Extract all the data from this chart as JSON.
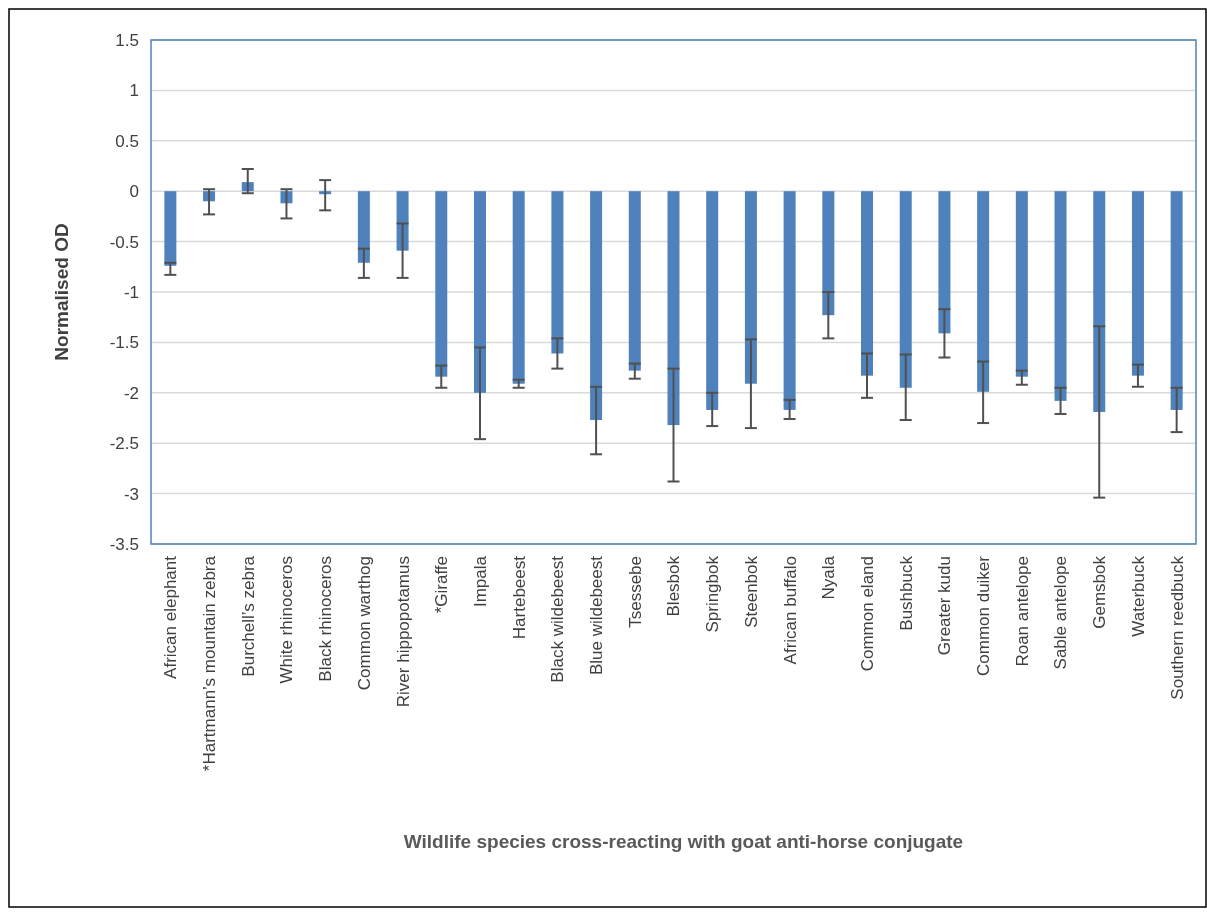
{
  "chart_data": {
    "type": "bar",
    "xlabel": "Wildlife species cross-reacting with goat anti-horse conjugate",
    "ylabel": "Normalised OD",
    "categories": [
      "African elephant",
      "*Hartmann’s mountain zebra",
      "Burchell’s zebra",
      "White rhinoceros",
      "Black rhinoceros",
      "Common warthog",
      "River hippopotamus",
      "*Giraffe",
      "Impala",
      "Hartebeest",
      "Black wildebeest",
      "Blue wildebeest",
      "Tsessebe",
      "Blesbok",
      "Springbok",
      "Steenbok",
      "African buffalo",
      "Nyala",
      "Common eland",
      "Bushbuck",
      "Greater kudu",
      "Common duiker",
      "Roan antelope",
      "Sable antelope",
      "Gemsbok",
      "Waterbuck",
      "Southern reedbuck"
    ],
    "values": [
      -0.74,
      -0.1,
      0.09,
      -0.12,
      -0.03,
      -0.71,
      -0.59,
      -1.84,
      -2.0,
      -1.91,
      -1.61,
      -2.27,
      -1.78,
      -2.32,
      -2.17,
      -1.91,
      -2.17,
      -1.23,
      -1.83,
      -1.95,
      -1.41,
      -1.99,
      -1.84,
      -2.08,
      -2.19,
      -1.83,
      -2.17
    ],
    "errors": [
      [
        -0.83,
        -0.71
      ],
      [
        -0.23,
        0.02
      ],
      [
        -0.02,
        0.22
      ],
      [
        -0.27,
        0.02
      ],
      [
        -0.19,
        0.11
      ],
      [
        -0.86,
        -0.57
      ],
      [
        -0.86,
        -0.32
      ],
      [
        -1.95,
        -1.73
      ],
      [
        -2.46,
        -1.55
      ],
      [
        -1.95,
        -1.87
      ],
      [
        -1.76,
        -1.46
      ],
      [
        -2.61,
        -1.94
      ],
      [
        -1.86,
        -1.71
      ],
      [
        -2.88,
        -1.76
      ],
      [
        -2.33,
        -2.0
      ],
      [
        -2.35,
        -1.47
      ],
      [
        -2.26,
        -2.07
      ],
      [
        -1.46,
        -1.0
      ],
      [
        -2.05,
        -1.61
      ],
      [
        -2.27,
        -1.62
      ],
      [
        -1.65,
        -1.17
      ],
      [
        -2.3,
        -1.69
      ],
      [
        -1.92,
        -1.78
      ],
      [
        -2.21,
        -1.95
      ],
      [
        -3.04,
        -1.34
      ],
      [
        -1.94,
        -1.72
      ],
      [
        -2.39,
        -1.95
      ]
    ],
    "color": "#4f81bd",
    "ylim": [
      -3.5,
      1.5
    ],
    "yticks": [
      -3.5,
      -3,
      -2.5,
      -2,
      -1.5,
      -1,
      -0.5,
      0,
      0.5,
      1,
      1.5
    ],
    "grid": "y"
  }
}
